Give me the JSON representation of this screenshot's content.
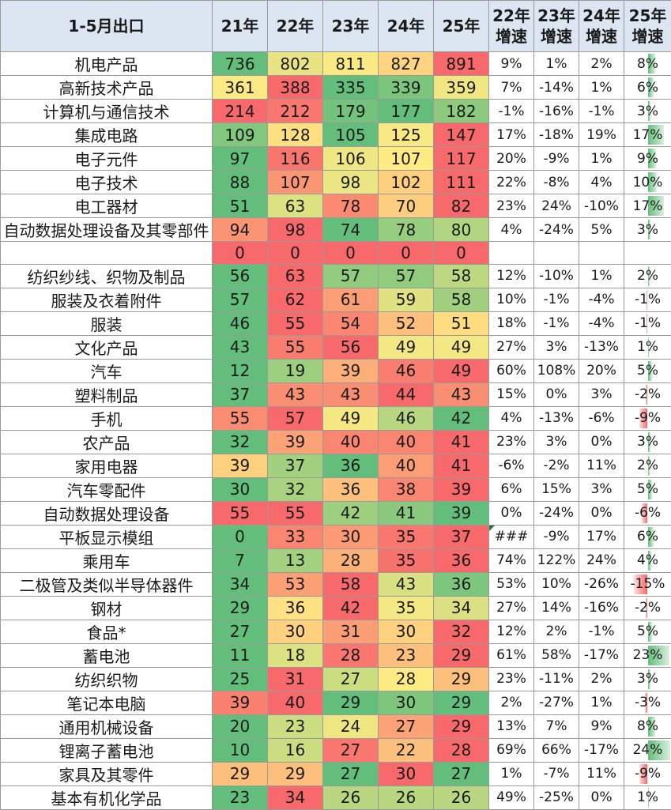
{
  "header": {
    "title": "1-5月出口",
    "years": [
      "21年",
      "22年",
      "23年",
      "24年",
      "25年"
    ],
    "growth": [
      {
        "line1": "22年",
        "line2": "增速"
      },
      {
        "line1": "23年",
        "line2": "增速"
      },
      {
        "line1": "24年",
        "line2": "增速"
      },
      {
        "line1": "25年",
        "line2": "增速"
      }
    ]
  },
  "colors": {
    "green": "#63be7b",
    "yellow": "#ffeb84",
    "red": "#f8696b"
  },
  "rows": [
    {
      "name": "机电产品",
      "values": [
        736,
        802,
        811,
        827,
        891
      ],
      "growth": [
        "9%",
        "1%",
        "2%",
        "8%"
      ],
      "g25": 8
    },
    {
      "name": "高新技术产品",
      "values": [
        361,
        388,
        335,
        339,
        359
      ],
      "growth": [
        "7%",
        "-14%",
        "1%",
        "6%"
      ],
      "g25": 6
    },
    {
      "name": "计算机与通信技术",
      "values": [
        214,
        212,
        179,
        177,
        182
      ],
      "growth": [
        "-1%",
        "-16%",
        "-1%",
        "3%"
      ],
      "g25": 3
    },
    {
      "name": "集成电路",
      "values": [
        109,
        128,
        105,
        125,
        147
      ],
      "growth": [
        "17%",
        "-18%",
        "19%",
        "17%"
      ],
      "g25": 17
    },
    {
      "name": "电子元件",
      "values": [
        97,
        116,
        106,
        107,
        117
      ],
      "growth": [
        "20%",
        "-9%",
        "1%",
        "9%"
      ],
      "g25": 9
    },
    {
      "name": "电子技术",
      "values": [
        88,
        107,
        98,
        102,
        111
      ],
      "growth": [
        "22%",
        "-8%",
        "4%",
        "10%"
      ],
      "g25": 10
    },
    {
      "name": "电工器材",
      "values": [
        51,
        63,
        78,
        70,
        82
      ],
      "growth": [
        "23%",
        "24%",
        "-10%",
        "17%"
      ],
      "g25": 17
    },
    {
      "name": "自动数据处理设备及其零部件",
      "values": [
        94,
        98,
        74,
        78,
        80
      ],
      "growth": [
        "4%",
        "-24%",
        "5%",
        "3%"
      ],
      "g25": 3
    },
    {
      "name": "",
      "values": [
        0,
        0,
        0,
        0,
        0
      ],
      "growth": [
        "",
        "",
        "",
        ""
      ],
      "g25": null
    },
    {
      "name": "纺织纱线、织物及制品",
      "values": [
        56,
        63,
        57,
        57,
        58
      ],
      "growth": [
        "12%",
        "-10%",
        "1%",
        "2%"
      ],
      "g25": 2
    },
    {
      "name": "服装及衣着附件",
      "values": [
        57,
        62,
        61,
        59,
        58
      ],
      "growth": [
        "10%",
        "-1%",
        "-4%",
        "-1%"
      ],
      "g25": -1
    },
    {
      "name": "服装",
      "values": [
        46,
        55,
        54,
        52,
        51
      ],
      "growth": [
        "18%",
        "-1%",
        "-4%",
        "-1%"
      ],
      "g25": -1
    },
    {
      "name": "文化产品",
      "values": [
        43,
        55,
        56,
        49,
        49
      ],
      "growth": [
        "27%",
        "3%",
        "-13%",
        "1%"
      ],
      "g25": 1
    },
    {
      "name": "汽车",
      "values": [
        12,
        19,
        39,
        46,
        49
      ],
      "growth": [
        "60%",
        "108%",
        "20%",
        "5%"
      ],
      "g25": 5
    },
    {
      "name": "塑料制品",
      "values": [
        37,
        43,
        43,
        44,
        43
      ],
      "growth": [
        "15%",
        "0%",
        "3%",
        "-2%"
      ],
      "g25": -2
    },
    {
      "name": "手机",
      "values": [
        55,
        57,
        49,
        46,
        42
      ],
      "growth": [
        "4%",
        "-13%",
        "-6%",
        "-9%"
      ],
      "g25": -9
    },
    {
      "name": "农产品",
      "values": [
        32,
        39,
        40,
        40,
        41
      ],
      "growth": [
        "23%",
        "3%",
        "0%",
        "3%"
      ],
      "g25": 3
    },
    {
      "name": "家用电器",
      "values": [
        39,
        37,
        36,
        40,
        41
      ],
      "growth": [
        "-6%",
        "-2%",
        "11%",
        "2%"
      ],
      "g25": 2
    },
    {
      "name": "汽车零配件",
      "values": [
        30,
        32,
        36,
        38,
        39
      ],
      "growth": [
        "6%",
        "15%",
        "3%",
        "5%"
      ],
      "g25": 5
    },
    {
      "name": "自动数据处理设备",
      "values": [
        55,
        55,
        42,
        41,
        39
      ],
      "growth": [
        "0%",
        "-24%",
        "0%",
        "-6%"
      ],
      "g25": -6
    },
    {
      "name": "平板显示模组",
      "values": [
        0,
        33,
        30,
        35,
        37
      ],
      "growth": [
        "###",
        "-9%",
        "17%",
        "6%"
      ],
      "g25": 6,
      "flag": true
    },
    {
      "name": "乘用车",
      "values": [
        7,
        13,
        28,
        35,
        36
      ],
      "growth": [
        "74%",
        "122%",
        "24%",
        "4%"
      ],
      "g25": 4
    },
    {
      "name": "二极管及类似半导体器件",
      "values": [
        34,
        53,
        58,
        43,
        36
      ],
      "growth": [
        "53%",
        "10%",
        "-26%",
        "-15%"
      ],
      "g25": -15
    },
    {
      "name": "钢材",
      "values": [
        29,
        36,
        42,
        35,
        34
      ],
      "growth": [
        "27%",
        "14%",
        "-16%",
        "-2%"
      ],
      "g25": -2
    },
    {
      "name": "食品*",
      "values": [
        27,
        30,
        31,
        30,
        32
      ],
      "growth": [
        "12%",
        "2%",
        "-1%",
        "5%"
      ],
      "g25": 5
    },
    {
      "name": "蓄电池",
      "values": [
        11,
        18,
        28,
        23,
        29
      ],
      "growth": [
        "61%",
        "58%",
        "-17%",
        "23%"
      ],
      "g25": 23
    },
    {
      "name": "纺织织物",
      "values": [
        25,
        31,
        27,
        28,
        29
      ],
      "growth": [
        "23%",
        "-11%",
        "2%",
        "3%"
      ],
      "g25": 3
    },
    {
      "name": "笔记本电脑",
      "values": [
        39,
        40,
        29,
        30,
        29
      ],
      "growth": [
        "2%",
        "-27%",
        "1%",
        "-3%"
      ],
      "g25": -3
    },
    {
      "name": "通用机械设备",
      "values": [
        20,
        23,
        24,
        27,
        29
      ],
      "growth": [
        "13%",
        "7%",
        "9%",
        "8%"
      ],
      "g25": 8
    },
    {
      "name": "锂离子蓄电池",
      "values": [
        10,
        16,
        27,
        22,
        28
      ],
      "growth": [
        "69%",
        "66%",
        "-17%",
        "24%"
      ],
      "g25": 24
    },
    {
      "name": "家具及其零件",
      "values": [
        29,
        29,
        27,
        30,
        27
      ],
      "growth": [
        "1%",
        "-7%",
        "11%",
        "-9%"
      ],
      "g25": -9
    },
    {
      "name": "基本有机化学品",
      "values": [
        23,
        34,
        26,
        26,
        26
      ],
      "growth": [
        "49%",
        "-25%",
        "0%",
        "1%"
      ],
      "g25": 1
    }
  ]
}
